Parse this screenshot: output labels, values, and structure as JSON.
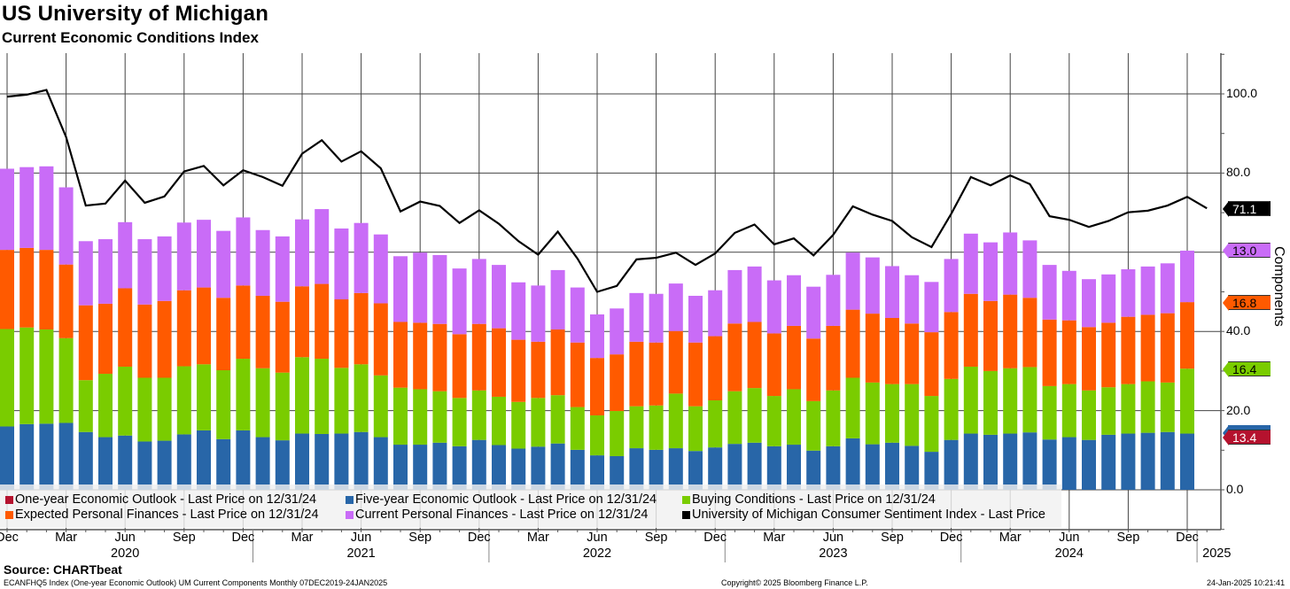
{
  "header": {
    "title": "US University of Michigan",
    "subtitle": "Current Economic Conditions Index"
  },
  "chart_data": {
    "type": "bar",
    "stacked": true,
    "title": "US University of Michigan",
    "subtitle": "Current Economic Conditions Index",
    "x_start": "Dec 2019",
    "frequency": "monthly",
    "ylabel": "Components",
    "ylim": [
      -10,
      110
    ],
    "y_ticks": [
      "0.0",
      "20.0",
      "40.0",
      "60.0",
      "80.0",
      "100.0"
    ],
    "y_tick_values": [
      0,
      20,
      40,
      60,
      80,
      100
    ],
    "x_ticks": [
      {
        "label": "Dec",
        "index": 0
      },
      {
        "label": "Mar",
        "index": 3
      },
      {
        "label": "Jun",
        "index": 6
      },
      {
        "label": "Sep",
        "index": 9
      },
      {
        "label": "Dec",
        "index": 12
      },
      {
        "label": "Mar",
        "index": 15
      },
      {
        "label": "Jun",
        "index": 18
      },
      {
        "label": "Sep",
        "index": 21
      },
      {
        "label": "Dec",
        "index": 24
      },
      {
        "label": "Mar",
        "index": 27
      },
      {
        "label": "Jun",
        "index": 30
      },
      {
        "label": "Sep",
        "index": 33
      },
      {
        "label": "Dec",
        "index": 36
      },
      {
        "label": "Mar",
        "index": 39
      },
      {
        "label": "Jun",
        "index": 42
      },
      {
        "label": "Sep",
        "index": 45
      },
      {
        "label": "Dec",
        "index": 48
      },
      {
        "label": "Mar",
        "index": 51
      },
      {
        "label": "Jun",
        "index": 54
      },
      {
        "label": "Sep",
        "index": 57
      },
      {
        "label": "Dec",
        "index": 60
      }
    ],
    "year_labels": [
      {
        "label": "2020",
        "index": 6
      },
      {
        "label": "2021",
        "index": 18
      },
      {
        "label": "2022",
        "index": 30
      },
      {
        "label": "2023",
        "index": 42
      },
      {
        "label": "2024",
        "index": 54
      },
      {
        "label": "2025",
        "index": 61.5
      }
    ],
    "year_separators": [
      12.5,
      24.5,
      36.5,
      48.5,
      60.5
    ],
    "series": [
      {
        "name": "Five-year Economic Outlook",
        "color": "#2866a8",
        "values": [
          16.0,
          16.6,
          16.7,
          16.9,
          14.6,
          13.3,
          13.7,
          12.2,
          12.4,
          14.0,
          15.0,
          12.8,
          15.0,
          13.3,
          12.5,
          14.2,
          14.1,
          14.2,
          14.6,
          13.3,
          11.4,
          11.4,
          11.9,
          11.0,
          12.6,
          11.3,
          10.4,
          10.9,
          11.7,
          10.1,
          8.7,
          8.5,
          10.5,
          10.1,
          10.5,
          9.8,
          10.7,
          11.6,
          11.9,
          11.0,
          11.4,
          9.9,
          11.0,
          13.0,
          11.5,
          11.9,
          11.1,
          9.6,
          12.6,
          14.2,
          13.9,
          14.2,
          14.5,
          12.7,
          13.3,
          12.6,
          13.9,
          14.2,
          14.4,
          14.6,
          14.2
        ]
      },
      {
        "name": "Buying Conditions",
        "color": "#7acc00",
        "values": [
          24.6,
          24.4,
          23.8,
          21.4,
          13.1,
          16.0,
          17.4,
          16.1,
          15.9,
          17.2,
          16.7,
          17.4,
          18.1,
          17.4,
          17.1,
          19.3,
          19.0,
          16.6,
          17.1,
          15.6,
          14.4,
          14.0,
          13.0,
          12.2,
          12.5,
          12.2,
          11.8,
          12.3,
          12.2,
          10.8,
          10.1,
          11.4,
          10.6,
          11.2,
          13.8,
          11.3,
          11.9,
          13.3,
          13.8,
          12.7,
          14.0,
          12.5,
          14.1,
          15.3,
          15.6,
          14.8,
          15.6,
          14.1,
          15.4,
          16.9,
          16.1,
          16.5,
          16.5,
          13.5,
          13.4,
          12.5,
          12.0,
          12.5,
          13.0,
          12.5,
          16.4
        ]
      },
      {
        "name": "Expected Personal Finances",
        "color": "#ff5a00",
        "values": [
          20.0,
          20.1,
          20.1,
          18.6,
          18.9,
          17.7,
          19.8,
          18.5,
          19.4,
          19.2,
          19.4,
          18.3,
          18.5,
          18.3,
          17.9,
          17.9,
          18.9,
          17.3,
          18.0,
          18.2,
          16.6,
          16.8,
          17.0,
          16.1,
          16.8,
          17.3,
          15.7,
          14.2,
          16.6,
          16.3,
          14.5,
          14.3,
          16.3,
          15.9,
          15.8,
          16.1,
          16.2,
          17.1,
          16.7,
          15.8,
          16.0,
          15.8,
          16.3,
          17.2,
          17.4,
          16.7,
          15.3,
          16.1,
          16.9,
          18.4,
          17.7,
          18.6,
          17.5,
          16.8,
          16.1,
          16.0,
          16.3,
          17.0,
          16.8,
          17.5,
          16.8
        ]
      },
      {
        "name": "Current Personal Finances",
        "color": "#c96cf7",
        "values": [
          20.5,
          20.4,
          21.1,
          19.5,
          16.2,
          16.3,
          16.7,
          16.5,
          16.3,
          17.1,
          17.1,
          16.9,
          17.2,
          16.6,
          16.5,
          16.9,
          18.9,
          17.9,
          17.7,
          17.4,
          16.6,
          17.7,
          17.4,
          16.6,
          16.4,
          16.0,
          14.5,
          14.2,
          15.0,
          13.9,
          11.0,
          11.6,
          12.3,
          12.3,
          12.0,
          11.8,
          11.6,
          13.5,
          14.0,
          13.4,
          12.8,
          13.1,
          12.9,
          14.4,
          14.2,
          13.1,
          12.2,
          12.7,
          13.4,
          15.2,
          14.8,
          15.7,
          14.5,
          13.8,
          12.5,
          12.1,
          12.2,
          12.0,
          12.2,
          12.6,
          13.0
        ]
      }
    ],
    "line_series": {
      "name": "University of Michigan Consumer Sentiment Index",
      "color": "#000000",
      "values": [
        99.3,
        99.8,
        101.0,
        89.1,
        71.8,
        72.3,
        78.1,
        72.5,
        74.1,
        80.4,
        81.8,
        76.9,
        80.7,
        79.0,
        76.8,
        84.9,
        88.3,
        82.9,
        85.5,
        81.2,
        70.3,
        72.8,
        71.7,
        67.4,
        70.6,
        67.2,
        62.8,
        59.4,
        65.2,
        58.4,
        50.0,
        51.5,
        58.2,
        58.6,
        59.9,
        56.8,
        59.7,
        64.9,
        67.0,
        62.0,
        63.5,
        59.2,
        64.4,
        71.6,
        69.5,
        67.9,
        63.8,
        61.3,
        69.7,
        79.0,
        76.9,
        79.4,
        77.2,
        69.1,
        68.2,
        66.4,
        67.9,
        70.1,
        70.5,
        71.8,
        74.0,
        71.1
      ]
    },
    "last_value_tags": [
      {
        "label": "71.1",
        "value": 71.1,
        "bg": "#000000",
        "fg": "#ffffff"
      },
      {
        "label": "13.0",
        "value": 60.5,
        "bg": "#c96cf7",
        "fg": "#000000"
      },
      {
        "label": "16.8",
        "value": 47.4,
        "bg": "#ff5a00",
        "fg": "#000000"
      },
      {
        "label": "16.4",
        "value": 30.6,
        "bg": "#7acc00",
        "fg": "#000000"
      },
      {
        "label": "13.4",
        "value": 13.4,
        "bg": "#b5122e",
        "fg": "#ffffff"
      }
    ],
    "legend": [
      {
        "label": "One-year Economic Outlook - Last Price on 12/31/24",
        "color": "#b5122e"
      },
      {
        "label": "Five-year Economic Outlook - Last Price on 12/31/24",
        "color": "#2866a8"
      },
      {
        "label": "Buying Conditions - Last Price on 12/31/24",
        "color": "#7acc00"
      },
      {
        "label": "Expected Personal Finances - Last Price on 12/31/24",
        "color": "#ff5a00"
      },
      {
        "label": "Current Personal Finances - Last Price on 12/31/24",
        "color": "#c96cf7"
      },
      {
        "label": "University of Michigan Consumer Sentiment Index - Last Price",
        "color": "#000000"
      }
    ],
    "legend_position": "bottom-left"
  },
  "footer": {
    "source": "Source: CHARTbeat",
    "ticker_line": "ECANFHQ5 Index (One-year Economic Outlook) UM Current Components  Monthly 07DEC2019-24JAN2025",
    "copyright": "Copyright© 2025 Bloomberg Finance L.P.",
    "timestamp": "24-Jan-2025 10:21:41"
  }
}
